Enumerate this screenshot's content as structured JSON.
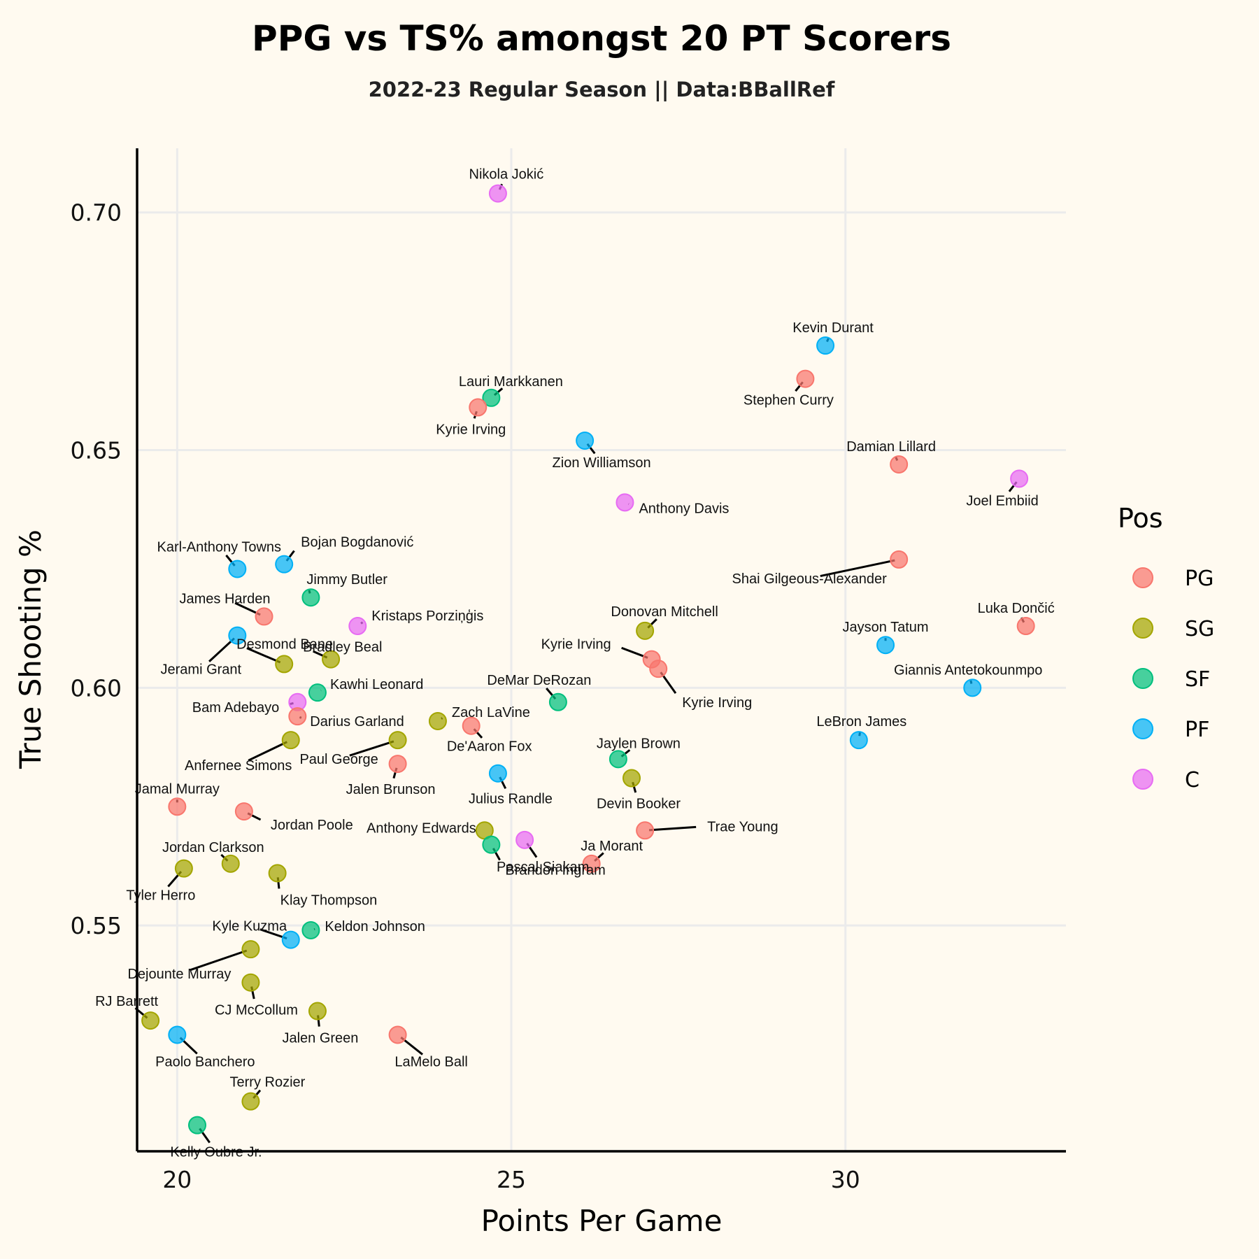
{
  "chart_data": {
    "type": "scatter",
    "title": "PPG vs TS% amongst 20 PT Scorers",
    "subtitle": "2022-23 Regular Season || Data:BBallRef",
    "xlabel": "Points Per Game",
    "ylabel": "True Shooting %",
    "xlim": [
      19.4,
      33.3
    ],
    "ylim": [
      0.5025,
      0.7135
    ],
    "x_ticks": [
      20,
      25,
      30
    ],
    "x_tick_labels": [
      "20",
      "25",
      "30"
    ],
    "y_ticks": [
      0.55,
      0.6,
      0.65,
      0.7
    ],
    "y_tick_labels": [
      "0.55",
      "0.60",
      "0.65",
      "0.70"
    ],
    "grid": true,
    "legend": {
      "title": "Pos",
      "placement": "right",
      "entries": [
        {
          "name": "PG",
          "color": "#f8766d"
        },
        {
          "name": "SG",
          "color": "#a3a500"
        },
        {
          "name": "SF",
          "color": "#00bf7d"
        },
        {
          "name": "PF",
          "color": "#00b0f6"
        },
        {
          "name": "C",
          "color": "#e76bf3"
        }
      ]
    },
    "points": [
      {
        "name": "Nikola Jokić",
        "pos": "C",
        "x": 24.8,
        "y": 0.704
      },
      {
        "name": "Kevin Durant",
        "pos": "PF",
        "x": 29.7,
        "y": 0.672
      },
      {
        "name": "Stephen Curry",
        "pos": "PG",
        "x": 29.4,
        "y": 0.665
      },
      {
        "name": "Lauri Markkanen",
        "pos": "SF",
        "x": 24.7,
        "y": 0.661
      },
      {
        "name": "Kyrie Irving",
        "pos": "PG",
        "x": 24.5,
        "y": 0.659
      },
      {
        "name": "Zion Williamson",
        "pos": "PF",
        "x": 26.1,
        "y": 0.652
      },
      {
        "name": "Damian Lillard",
        "pos": "PG",
        "x": 30.8,
        "y": 0.647
      },
      {
        "name": "Joel Embiid",
        "pos": "C",
        "x": 32.6,
        "y": 0.644
      },
      {
        "name": "Anthony Davis",
        "pos": "C",
        "x": 26.7,
        "y": 0.639
      },
      {
        "name": "Shai Gilgeous-Alexander",
        "pos": "PG",
        "x": 30.8,
        "y": 0.627
      },
      {
        "name": "Karl-Anthony Towns",
        "pos": "PF",
        "x": 20.9,
        "y": 0.625
      },
      {
        "name": "Bojan Bogdanović",
        "pos": "PF",
        "x": 21.6,
        "y": 0.626
      },
      {
        "name": "Jimmy Butler",
        "pos": "SF",
        "x": 22.0,
        "y": 0.619
      },
      {
        "name": "James Harden",
        "pos": "PG",
        "x": 21.3,
        "y": 0.615
      },
      {
        "name": "Kristaps Porziņģis",
        "pos": "C",
        "x": 22.7,
        "y": 0.613
      },
      {
        "name": "Donovan Mitchell",
        "pos": "SG",
        "x": 27.0,
        "y": 0.612
      },
      {
        "name": "Luka Dončić",
        "pos": "PG",
        "x": 32.7,
        "y": 0.613
      },
      {
        "name": "Jerami Grant",
        "pos": "PF",
        "x": 20.9,
        "y": 0.611
      },
      {
        "name": "Jayson Tatum",
        "pos": "PF",
        "x": 30.6,
        "y": 0.609
      },
      {
        "name": "Desmond Bane",
        "pos": "SG",
        "x": 21.6,
        "y": 0.605
      },
      {
        "name": "Bradley Beal",
        "pos": "SG",
        "x": 22.3,
        "y": 0.606
      },
      {
        "name": "Kyrie Irving",
        "pos": "PG",
        "x": 27.1,
        "y": 0.606
      },
      {
        "name": "Kyrie Irving",
        "pos": "PG",
        "x": 27.2,
        "y": 0.604
      },
      {
        "name": "Giannis Antetokounmpo",
        "pos": "PF",
        "x": 31.9,
        "y": 0.6
      },
      {
        "name": "Kawhi Leonard",
        "pos": "SF",
        "x": 22.1,
        "y": 0.599
      },
      {
        "name": "DeMar DeRozan",
        "pos": "SF",
        "x": 25.7,
        "y": 0.597
      },
      {
        "name": "Bam Adebayo",
        "pos": "C",
        "x": 21.8,
        "y": 0.597
      },
      {
        "name": "Darius Garland",
        "pos": "PG",
        "x": 21.8,
        "y": 0.594
      },
      {
        "name": "Zach LaVine",
        "pos": "SG",
        "x": 23.9,
        "y": 0.593
      },
      {
        "name": "De'Aaron Fox",
        "pos": "PG",
        "x": 24.4,
        "y": 0.592
      },
      {
        "name": "Anfernee Simons",
        "pos": "SG",
        "x": 21.7,
        "y": 0.589
      },
      {
        "name": "Paul George",
        "pos": "SG",
        "x": 23.3,
        "y": 0.589
      },
      {
        "name": "LeBron James",
        "pos": "PF",
        "x": 30.2,
        "y": 0.589
      },
      {
        "name": "Jaylen Brown",
        "pos": "SF",
        "x": 26.6,
        "y": 0.585
      },
      {
        "name": "Jalen Brunson",
        "pos": "PG",
        "x": 23.3,
        "y": 0.584
      },
      {
        "name": "Julius Randle",
        "pos": "PF",
        "x": 24.8,
        "y": 0.582
      },
      {
        "name": "Devin Booker",
        "pos": "SG",
        "x": 26.8,
        "y": 0.581
      },
      {
        "name": "Jamal Murray",
        "pos": "PG",
        "x": 20.0,
        "y": 0.575
      },
      {
        "name": "Jordan Poole",
        "pos": "PG",
        "x": 21.0,
        "y": 0.574
      },
      {
        "name": "Trae Young",
        "pos": "PG",
        "x": 27.0,
        "y": 0.57
      },
      {
        "name": "Anthony Edwards",
        "pos": "SG",
        "x": 24.6,
        "y": 0.57
      },
      {
        "name": "Pascal Siakam",
        "pos": "C",
        "x": 25.2,
        "y": 0.568
      },
      {
        "name": "Brandon Ingram",
        "pos": "SF",
        "x": 24.7,
        "y": 0.567
      },
      {
        "name": "Ja Morant",
        "pos": "PG",
        "x": 26.2,
        "y": 0.563
      },
      {
        "name": "Jordan Clarkson",
        "pos": "SG",
        "x": 20.8,
        "y": 0.563
      },
      {
        "name": "Tyler Herro",
        "pos": "SG",
        "x": 20.1,
        "y": 0.562
      },
      {
        "name": "Klay Thompson",
        "pos": "SG",
        "x": 21.5,
        "y": 0.561
      },
      {
        "name": "Keldon Johnson",
        "pos": "SF",
        "x": 22.0,
        "y": 0.549
      },
      {
        "name": "Kyle Kuzma",
        "pos": "PF",
        "x": 21.7,
        "y": 0.547
      },
      {
        "name": "Dejounte Murray",
        "pos": "SG",
        "x": 21.1,
        "y": 0.545
      },
      {
        "name": "CJ McCollum",
        "pos": "SG",
        "x": 21.1,
        "y": 0.538
      },
      {
        "name": "Jalen Green",
        "pos": "SG",
        "x": 22.1,
        "y": 0.532
      },
      {
        "name": "RJ Barrett",
        "pos": "SG",
        "x": 19.6,
        "y": 0.53
      },
      {
        "name": "Paolo Banchero",
        "pos": "PF",
        "x": 20.0,
        "y": 0.527
      },
      {
        "name": "LaMelo Ball",
        "pos": "PG",
        "x": 23.3,
        "y": 0.527
      },
      {
        "name": "Terry Rozier",
        "pos": "SG",
        "x": 21.1,
        "y": 0.513
      },
      {
        "name": "Kelly Oubre Jr.",
        "pos": "SF",
        "x": 20.3,
        "y": 0.508
      }
    ]
  }
}
